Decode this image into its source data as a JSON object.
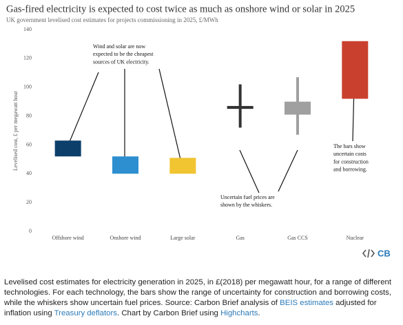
{
  "chart_data": {
    "type": "floating_bar",
    "title": "Gas-fired electricity is expected to cost twice as much as onshore wind or solar in 2025",
    "subtitle": "UK government levelised cost estimates for projects commissioning in 2025, £/MWh",
    "y_label": "Levelised cost, £ per megawatt hour",
    "categories": [
      "Offshore wind",
      "Onshore wind",
      "Large solar",
      "Gas",
      "Gas CCS",
      "Nuclear"
    ],
    "low": [
      52,
      40,
      40,
      85,
      81,
      92
    ],
    "high": [
      63,
      52,
      51,
      87,
      90,
      132
    ],
    "whisker_low": [
      null,
      null,
      null,
      72,
      67,
      null
    ],
    "whisker_high": [
      null,
      null,
      null,
      102,
      107,
      null
    ],
    "colors": [
      "#0d3f6b",
      "#2e8fd0",
      "#f1c431",
      "#333333",
      "#a0a0a0",
      "#c9412e"
    ],
    "ylim": [
      0,
      140
    ],
    "yticks": [
      0,
      20,
      40,
      60,
      80,
      100,
      120,
      140
    ],
    "grid": false,
    "annotations": [
      [
        "Wind and solar are now",
        "expected to be the cheapest",
        "sources of UK electricity."
      ],
      [
        "Uncertain fuel prices are",
        "shown by the whiskers."
      ],
      [
        "The bars show",
        "uncertain costs",
        "for construction",
        "and borrowing."
      ]
    ],
    "logo": "CB"
  },
  "caption": [
    "Levelised cost estimates for electricity generation in 2025, in £(2018) per megawatt hour, for a range of different technologies. For each technology, the bars show the range of uncertainty for construction and borrowing costs, while the whiskers show uncertain fuel prices. Source: Carbon Brief analysis of ",
    "BEIS estimates",
    " adjusted for inflation using ",
    "Treasury deflators",
    ". Chart by Carbon Brief using ",
    "Highcharts",
    "."
  ]
}
